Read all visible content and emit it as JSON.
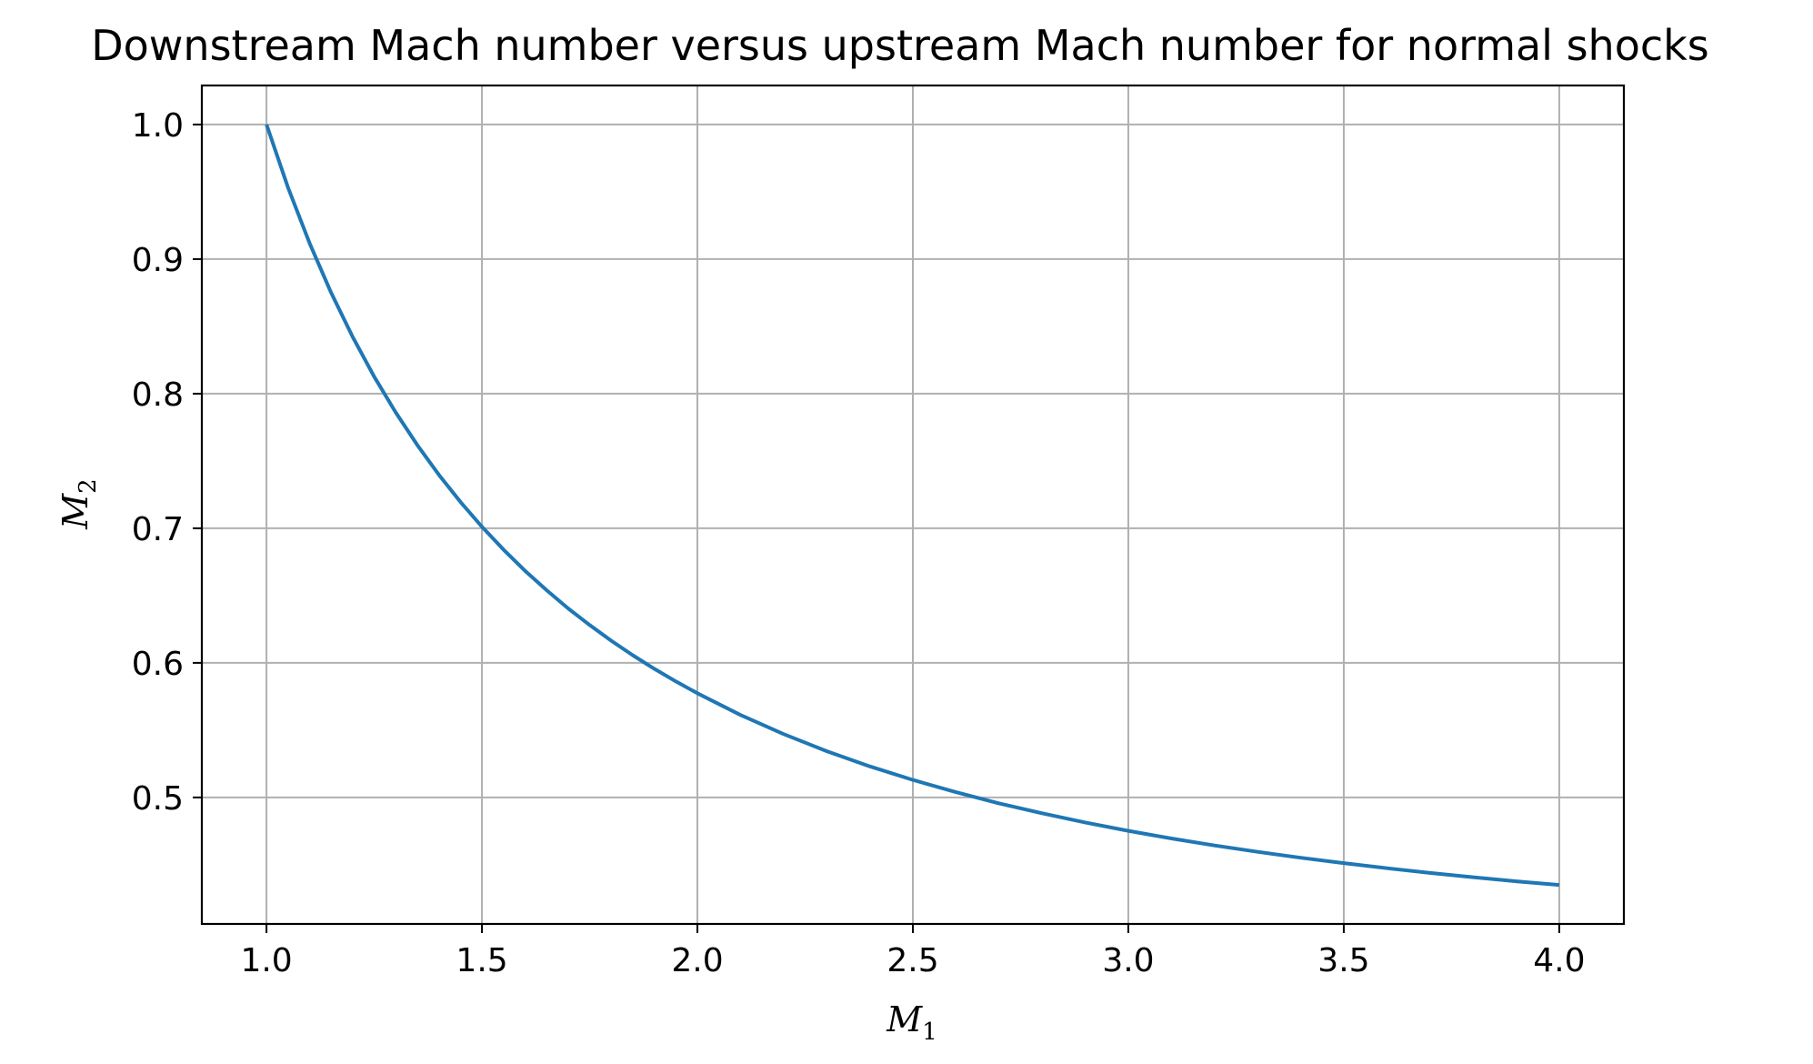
{
  "chart_data": {
    "type": "line",
    "title": "Downstream Mach number versus upstream Mach number for normal shocks",
    "xlabel": {
      "base": "M",
      "sub": "1"
    },
    "ylabel": {
      "base": "M",
      "sub": "2"
    },
    "xlim": [
      0.85,
      4.15
    ],
    "ylim": [
      0.406,
      1.029
    ],
    "xticks": [
      1.0,
      1.5,
      2.0,
      2.5,
      3.0,
      3.5,
      4.0
    ],
    "xtick_labels": [
      "1.0",
      "1.5",
      "2.0",
      "2.5",
      "3.0",
      "3.5",
      "4.0"
    ],
    "yticks": [
      0.5,
      0.6,
      0.7,
      0.8,
      0.9,
      1.0
    ],
    "ytick_labels": [
      "0.5",
      "0.6",
      "0.7",
      "0.8",
      "0.9",
      "1.0"
    ],
    "grid": true,
    "legend": "none",
    "series": [
      {
        "color": "#1f77b4",
        "x": [
          1.0,
          1.05,
          1.1,
          1.15,
          1.2,
          1.25,
          1.3,
          1.35,
          1.4,
          1.45,
          1.5,
          1.55,
          1.6,
          1.65,
          1.7,
          1.75,
          1.8,
          1.85,
          1.9,
          1.95,
          2.0,
          2.1,
          2.2,
          2.3,
          2.4,
          2.5,
          2.6,
          2.7,
          2.8,
          2.9,
          3.0,
          3.1,
          3.2,
          3.3,
          3.4,
          3.5,
          3.6,
          3.7,
          3.8,
          3.9,
          4.0
        ],
        "y": [
          1.0,
          0.9531,
          0.9118,
          0.875,
          0.8422,
          0.8126,
          0.786,
          0.7618,
          0.7397,
          0.7196,
          0.7011,
          0.6841,
          0.6684,
          0.654,
          0.6405,
          0.6281,
          0.6165,
          0.6057,
          0.5956,
          0.5862,
          0.5774,
          0.5613,
          0.5471,
          0.5344,
          0.5231,
          0.513,
          0.5039,
          0.4956,
          0.4882,
          0.4814,
          0.4752,
          0.4695,
          0.4643,
          0.4596,
          0.4552,
          0.4512,
          0.4474,
          0.4439,
          0.4407,
          0.4377,
          0.435
        ]
      }
    ]
  }
}
